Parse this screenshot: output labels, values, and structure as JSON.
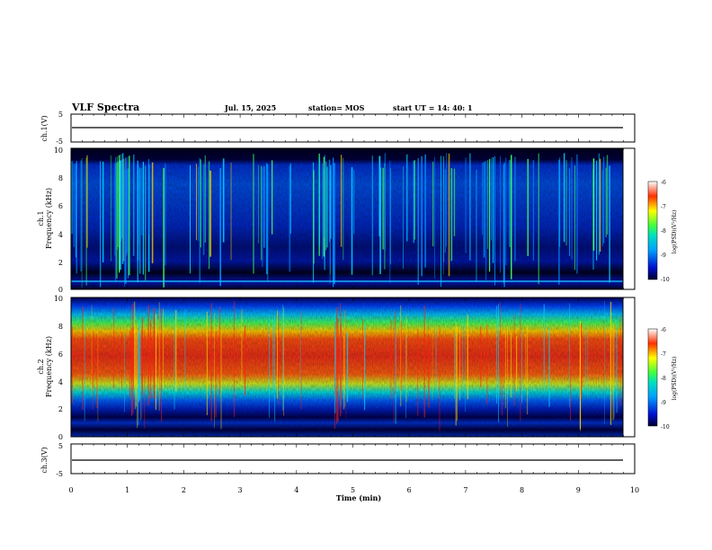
{
  "header": {
    "title": "VLF Spectra",
    "date": "Jul. 15, 2025",
    "station": "station= MOS",
    "start": "start  UT =   14: 40: 1"
  },
  "chart_data": [
    {
      "type": "line",
      "panel": "ch1-voltage",
      "ylabel": "ch.1(V)",
      "ylim": [
        -5,
        5
      ],
      "yticks": [
        "5",
        "-5"
      ],
      "x": [
        0,
        10
      ],
      "series": [
        {
          "values": [
            0,
            0
          ]
        }
      ]
    },
    {
      "type": "heatmap",
      "panel": "ch1-spectrogram",
      "ylabel": "ch.1\nFrequency (kHz)",
      "ylim": [
        0,
        10
      ],
      "yticks": [
        "0",
        "2",
        "4",
        "6",
        "8",
        "10"
      ],
      "xlim": [
        0,
        10
      ],
      "colorbar": {
        "label": "log(PSD)(V²/Hz)",
        "range": [
          -10,
          -6
        ],
        "ticks": [
          "-6",
          "-7",
          "-8",
          "-9",
          "-10"
        ]
      }
    },
    {
      "type": "heatmap",
      "panel": "ch2-spectrogram",
      "ylabel": "ch.2\nFrequency (kHz)",
      "ylim": [
        0,
        10
      ],
      "yticks": [
        "0",
        "2",
        "4",
        "6",
        "8",
        "10"
      ],
      "xlim": [
        0,
        10
      ],
      "colorbar": {
        "label": "log(PSD)(V²/Hz)",
        "range": [
          -10,
          -6
        ],
        "ticks": [
          "-6",
          "-7",
          "-8",
          "-9",
          "-10"
        ]
      }
    },
    {
      "type": "line",
      "panel": "ch3-voltage",
      "ylabel": "ch.3(V)",
      "ylim": [
        -5,
        5
      ],
      "yticks": [
        "5",
        "-5"
      ],
      "x": [
        0,
        10
      ],
      "series": [
        {
          "values": [
            0,
            0
          ]
        }
      ]
    }
  ],
  "xaxis": {
    "label": "Time (min)",
    "ticks": [
      "0",
      "1",
      "2",
      "3",
      "4",
      "5",
      "6",
      "7",
      "8",
      "9",
      "10"
    ]
  },
  "colors": {
    "ch1_background": "#0018c8",
    "ch2_band": "#e84020"
  }
}
